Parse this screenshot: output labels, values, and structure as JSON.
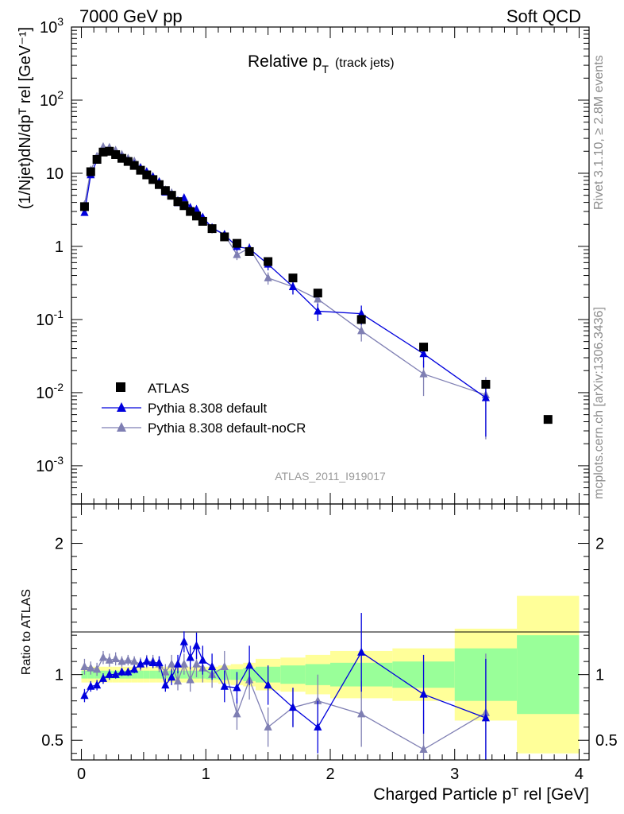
{
  "header": {
    "left": "7000 GeV pp",
    "right": "Soft QCD"
  },
  "plot_title": {
    "main": "Relative p",
    "sub": "T",
    "suffix": "(track jets)"
  },
  "side_labels": {
    "rivet": "Rivet 3.1.10, ≥ 2.8M events",
    "mcplots": "mcplots.cern.ch [arXiv:1306.3436]"
  },
  "analysis_id": "ATLAS_2011_I919017",
  "colors": {
    "data": "#000000",
    "default": "#0000dd",
    "nocr": "#7f7fb3",
    "band_inner": "#99ff99",
    "band_outer": "#ffff99"
  },
  "chart_data": [
    {
      "type": "scatter",
      "panel": "main",
      "title": "Relative pT (track jets)",
      "ylabel": "(1/Njet)dN/dpᵀ rel [GeV⁻¹]",
      "yscale": "log",
      "ylim": [
        0.0003,
        1000
      ],
      "xlim": [
        -0.08,
        4.08
      ],
      "yticks": [
        {
          "v": 0.001,
          "base": "10",
          "exp": "-3"
        },
        {
          "v": 0.01,
          "base": "10",
          "exp": "-2"
        },
        {
          "v": 0.1,
          "base": "10",
          "exp": "-1"
        },
        {
          "v": 1,
          "base": "1",
          "exp": ""
        },
        {
          "v": 10,
          "base": "10",
          "exp": ""
        },
        {
          "v": 100,
          "base": "10",
          "exp": "2"
        },
        {
          "v": 1000,
          "base": "10",
          "exp": "3"
        }
      ],
      "legend_position": "lower-left",
      "series": [
        {
          "name": "ATLAS",
          "key": "data",
          "marker": "square",
          "x": [
            0.025,
            0.075,
            0.125,
            0.175,
            0.225,
            0.275,
            0.325,
            0.375,
            0.425,
            0.475,
            0.525,
            0.575,
            0.625,
            0.675,
            0.725,
            0.775,
            0.825,
            0.875,
            0.925,
            0.975,
            1.05,
            1.15,
            1.25,
            1.35,
            1.5,
            1.7,
            1.9,
            2.25,
            2.75,
            3.25,
            3.75
          ],
          "y": [
            3.5,
            10.5,
            15.5,
            19.5,
            20.0,
            18.0,
            16.0,
            14.5,
            12.8,
            11.0,
            9.5,
            8.2,
            7.0,
            5.8,
            5.0,
            4.1,
            3.6,
            3.0,
            2.6,
            2.2,
            1.75,
            1.35,
            1.1,
            0.85,
            0.62,
            0.37,
            0.23,
            0.1,
            0.042,
            0.013,
            0.0043
          ]
        },
        {
          "name": "Pythia 8.308 default",
          "key": "default",
          "marker": "triangle",
          "x": [
            0.025,
            0.075,
            0.125,
            0.175,
            0.225,
            0.275,
            0.325,
            0.375,
            0.425,
            0.475,
            0.525,
            0.575,
            0.625,
            0.675,
            0.725,
            0.775,
            0.825,
            0.875,
            0.925,
            0.975,
            1.05,
            1.15,
            1.25,
            1.35,
            1.5,
            1.7,
            1.9,
            2.25,
            2.75,
            3.25
          ],
          "y": [
            2.9,
            9.5,
            15.0,
            19.2,
            19.8,
            18.0,
            16.3,
            14.7,
            13.2,
            11.8,
            10.4,
            8.9,
            7.6,
            5.5,
            5.0,
            4.2,
            4.6,
            3.4,
            3.2,
            2.5,
            1.8,
            1.45,
            0.99,
            0.93,
            0.57,
            0.28,
            0.13,
            0.12,
            0.034,
            0.0085
          ],
          "yerr": [
            0.15,
            0.3,
            0.4,
            0.5,
            0.5,
            0.5,
            0.45,
            0.4,
            0.4,
            0.35,
            0.35,
            0.3,
            0.3,
            0.3,
            0.3,
            0.3,
            0.35,
            0.3,
            0.3,
            0.25,
            0.2,
            0.18,
            0.12,
            0.14,
            0.1,
            0.06,
            0.035,
            0.035,
            0.012,
            0.006
          ]
        },
        {
          "name": "Pythia 8.308 default-noCR",
          "key": "nocr",
          "marker": "triangle",
          "x": [
            0.025,
            0.075,
            0.125,
            0.175,
            0.225,
            0.275,
            0.325,
            0.375,
            0.425,
            0.475,
            0.525,
            0.575,
            0.625,
            0.675,
            0.725,
            0.775,
            0.825,
            0.875,
            0.925,
            0.975,
            1.05,
            1.15,
            1.25,
            1.35,
            1.5,
            1.7,
            1.9,
            2.25,
            2.75,
            3.25
          ],
          "y": [
            3.7,
            11.0,
            17.0,
            23.0,
            22.5,
            20.5,
            18.0,
            16.0,
            14.6,
            12.0,
            10.5,
            9.0,
            7.6,
            5.9,
            5.4,
            3.9,
            3.9,
            3.2,
            2.6,
            2.3,
            1.75,
            1.45,
            0.77,
            0.95,
            0.37,
            0.28,
            0.19,
            0.07,
            0.018,
            0.0093
          ],
          "yerr": [
            0.2,
            0.4,
            0.6,
            0.8,
            0.8,
            0.7,
            0.6,
            0.6,
            0.5,
            0.5,
            0.5,
            0.4,
            0.4,
            0.4,
            0.4,
            0.35,
            0.35,
            0.3,
            0.3,
            0.3,
            0.25,
            0.2,
            0.12,
            0.15,
            0.07,
            0.06,
            0.05,
            0.02,
            0.009,
            0.007
          ]
        }
      ]
    },
    {
      "type": "scatter",
      "panel": "ratio",
      "ylabel": "Ratio to ATLAS",
      "xlabel": "Charged Particle pᵀ rel [GeV]",
      "ylim": [
        0.35,
        2.3
      ],
      "xlim": [
        -0.08,
        4.08
      ],
      "yticks": [
        0.5,
        1,
        2
      ],
      "xticks": [
        0,
        1,
        2,
        3,
        4
      ],
      "band_edges": [
        0,
        0.05,
        0.1,
        0.15,
        0.2,
        0.25,
        0.3,
        0.35,
        0.4,
        0.45,
        0.5,
        0.55,
        0.6,
        0.65,
        0.7,
        0.75,
        0.8,
        0.85,
        0.9,
        0.95,
        1.0,
        1.1,
        1.2,
        1.3,
        1.4,
        1.6,
        1.8,
        2.0,
        2.5,
        3.0,
        3.5,
        4.0
      ],
      "band_inner": [
        0.03,
        0.03,
        0.03,
        0.03,
        0.03,
        0.03,
        0.03,
        0.03,
        0.03,
        0.03,
        0.03,
        0.03,
        0.03,
        0.03,
        0.03,
        0.03,
        0.03,
        0.03,
        0.03,
        0.03,
        0.035,
        0.04,
        0.04,
        0.05,
        0.06,
        0.07,
        0.08,
        0.09,
        0.1,
        0.2,
        0.3
      ],
      "band_outer": [
        0.06,
        0.06,
        0.06,
        0.06,
        0.06,
        0.06,
        0.06,
        0.06,
        0.06,
        0.06,
        0.06,
        0.06,
        0.06,
        0.06,
        0.06,
        0.06,
        0.06,
        0.06,
        0.06,
        0.06,
        0.06,
        0.07,
        0.08,
        0.09,
        0.12,
        0.13,
        0.15,
        0.18,
        0.2,
        0.35,
        0.6
      ],
      "series": [
        {
          "name": "Pythia 8.308 default",
          "key": "default",
          "x": [
            0.025,
            0.075,
            0.125,
            0.175,
            0.225,
            0.275,
            0.325,
            0.375,
            0.425,
            0.475,
            0.525,
            0.575,
            0.625,
            0.675,
            0.725,
            0.775,
            0.825,
            0.875,
            0.925,
            0.975,
            1.05,
            1.15,
            1.25,
            1.35,
            1.5,
            1.7,
            1.9,
            2.25,
            2.75,
            3.25
          ],
          "y": [
            0.84,
            0.91,
            0.92,
            0.97,
            1.0,
            1.0,
            1.02,
            1.02,
            1.04,
            1.08,
            1.1,
            1.09,
            1.09,
            0.92,
            0.98,
            1.08,
            1.25,
            1.13,
            1.22,
            1.11,
            1.06,
            0.91,
            0.9,
            1.07,
            0.92,
            0.75,
            0.6,
            1.17,
            0.85,
            0.67
          ],
          "yerr": [
            0.05,
            0.04,
            0.04,
            0.04,
            0.04,
            0.03,
            0.03,
            0.03,
            0.03,
            0.04,
            0.04,
            0.04,
            0.05,
            0.05,
            0.06,
            0.07,
            0.08,
            0.09,
            0.1,
            0.11,
            0.1,
            0.12,
            0.12,
            0.15,
            0.15,
            0.15,
            0.2,
            0.3,
            0.3,
            0.45
          ]
        },
        {
          "name": "Pythia 8.308 default-noCR",
          "key": "nocr",
          "x": [
            0.025,
            0.075,
            0.125,
            0.175,
            0.225,
            0.275,
            0.325,
            0.375,
            0.425,
            0.475,
            0.525,
            0.575,
            0.625,
            0.675,
            0.725,
            0.775,
            0.825,
            0.875,
            0.925,
            0.975,
            1.05,
            1.15,
            1.25,
            1.35,
            1.5,
            1.7,
            1.9,
            2.25,
            2.75,
            3.25
          ],
          "y": [
            1.06,
            1.05,
            1.04,
            1.13,
            1.11,
            1.12,
            1.1,
            1.11,
            1.1,
            1.08,
            1.1,
            1.1,
            1.08,
            1.02,
            1.08,
            0.95,
            1.08,
            0.96,
            1.08,
            1.05,
            1.0,
            1.06,
            0.7,
            0.96,
            0.6,
            0.75,
            0.8,
            0.7,
            0.43,
            0.71
          ],
          "yerr": [
            0.06,
            0.05,
            0.05,
            0.05,
            0.05,
            0.05,
            0.04,
            0.04,
            0.04,
            0.05,
            0.05,
            0.05,
            0.06,
            0.06,
            0.07,
            0.07,
            0.08,
            0.09,
            0.1,
            0.11,
            0.1,
            0.12,
            0.12,
            0.15,
            0.15,
            0.15,
            0.2,
            0.25,
            0.3,
            0.45
          ]
        }
      ]
    }
  ]
}
